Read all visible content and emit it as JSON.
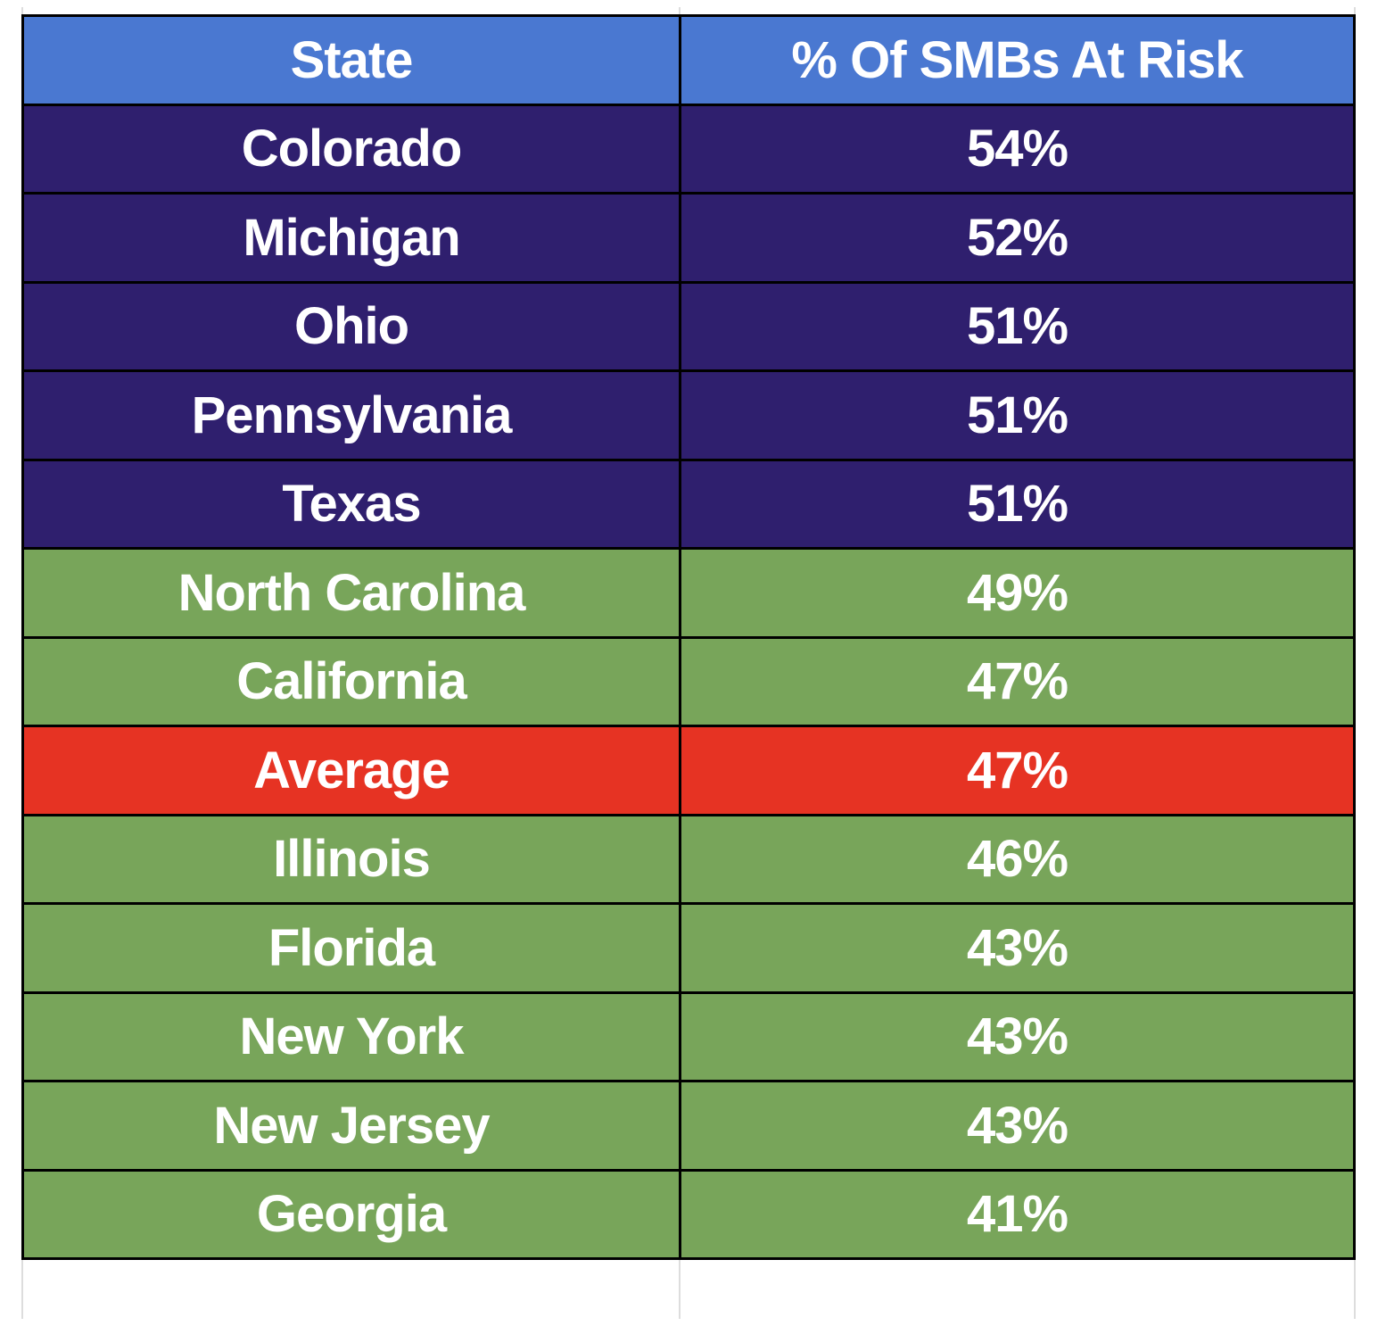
{
  "colors": {
    "header": "#4a78d1",
    "top": "#2f1f6e",
    "rest": "#78a55a",
    "average": "#e63323",
    "text": "#ffffff"
  },
  "chart_data": {
    "type": "table",
    "columns": [
      "State",
      "% Of SMBs At Risk"
    ],
    "rows": [
      {
        "state": "Colorado",
        "value": "54%",
        "group": "top"
      },
      {
        "state": "Michigan",
        "value": "52%",
        "group": "top"
      },
      {
        "state": "Ohio",
        "value": "51%",
        "group": "top"
      },
      {
        "state": "Pennsylvania",
        "value": "51%",
        "group": "top"
      },
      {
        "state": "Texas",
        "value": "51%",
        "group": "top"
      },
      {
        "state": "North Carolina",
        "value": "49%",
        "group": "rest"
      },
      {
        "state": "California",
        "value": "47%",
        "group": "rest"
      },
      {
        "state": "Average",
        "value": "47%",
        "group": "average"
      },
      {
        "state": "Illinois",
        "value": "46%",
        "group": "rest"
      },
      {
        "state": "Florida",
        "value": "43%",
        "group": "rest"
      },
      {
        "state": "New York",
        "value": "43%",
        "group": "rest"
      },
      {
        "state": "New Jersey",
        "value": "43%",
        "group": "rest"
      },
      {
        "state": "Georgia",
        "value": "41%",
        "group": "rest"
      }
    ]
  }
}
